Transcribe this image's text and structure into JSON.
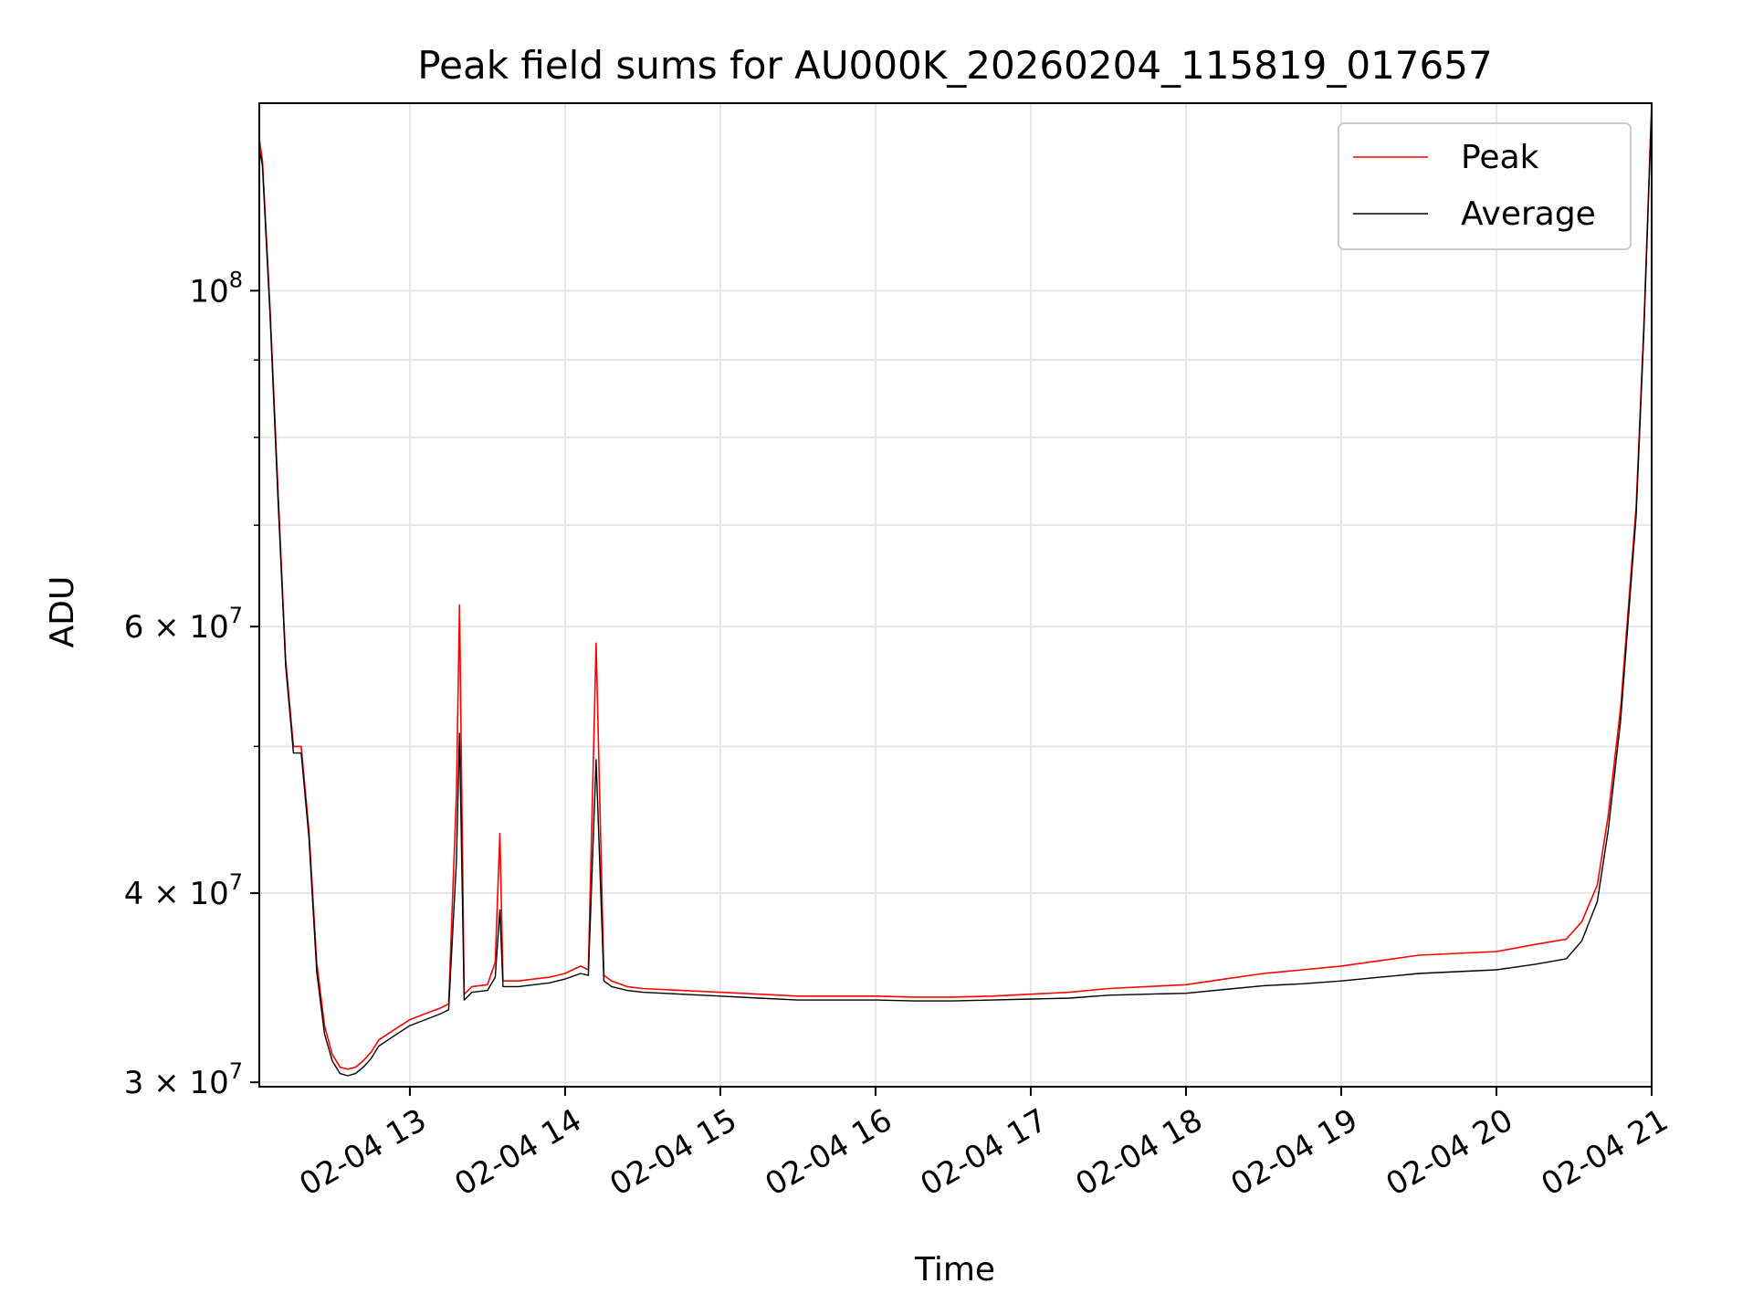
{
  "chart_data": {
    "type": "line",
    "title": "Peak field sums for AU000K_20260204_115819_017657",
    "xlabel": "Time",
    "ylabel": "ADU",
    "x_unit": "hours since 02-04 00:00",
    "xlim": [
      12.03,
      21.0
    ],
    "ylim": [
      29800000,
      133000000
    ],
    "yscale": "log",
    "grid": true,
    "legend_position": "upper right",
    "x_ticks": [
      {
        "value": 13,
        "label": "02-04 13"
      },
      {
        "value": 14,
        "label": "02-04 14"
      },
      {
        "value": 15,
        "label": "02-04 15"
      },
      {
        "value": 16,
        "label": "02-04 16"
      },
      {
        "value": 17,
        "label": "02-04 17"
      },
      {
        "value": 18,
        "label": "02-04 18"
      },
      {
        "value": 19,
        "label": "02-04 19"
      },
      {
        "value": 20,
        "label": "02-04 20"
      },
      {
        "value": 21,
        "label": "02-04 21"
      }
    ],
    "y_major_ticks": [
      {
        "value": 30000000,
        "mant": "3",
        "exp": "7"
      },
      {
        "value": 40000000,
        "mant": "4",
        "exp": "7"
      },
      {
        "value": 60000000,
        "mant": "6",
        "exp": "7"
      },
      {
        "value": 100000000,
        "mant": "",
        "exp": "8"
      }
    ],
    "y_minor_grid": [
      50000000,
      70000000,
      80000000,
      90000000
    ],
    "series": [
      {
        "name": "Peak",
        "color": "#ff0000",
        "x": [
          12.03,
          12.05,
          12.1,
          12.15,
          12.2,
          12.25,
          12.3,
          12.35,
          12.4,
          12.45,
          12.5,
          12.55,
          12.6,
          12.65,
          12.7,
          12.75,
          12.8,
          12.9,
          13.0,
          13.1,
          13.2,
          13.25,
          13.3,
          13.32,
          13.35,
          13.4,
          13.5,
          13.55,
          13.58,
          13.6,
          13.7,
          13.8,
          13.9,
          14.0,
          14.1,
          14.15,
          14.2,
          14.25,
          14.3,
          14.4,
          14.5,
          14.75,
          15.0,
          15.25,
          15.5,
          15.75,
          16.0,
          16.25,
          16.5,
          16.75,
          17.0,
          17.25,
          17.5,
          17.75,
          18.0,
          18.25,
          18.5,
          18.75,
          19.0,
          19.25,
          19.5,
          19.75,
          20.0,
          20.25,
          20.45,
          20.55,
          20.65,
          20.72,
          20.8,
          20.9,
          20.95,
          21.0
        ],
        "y": [
          126000000,
          122000000,
          97000000,
          74000000,
          57000000,
          50000000,
          50000000,
          44000000,
          36000000,
          32700000,
          31300000,
          30700000,
          30600000,
          30700000,
          31000000,
          31400000,
          32000000,
          32500000,
          33000000,
          33300000,
          33600000,
          33800000,
          46500000,
          62000000,
          34300000,
          34700000,
          34800000,
          36000000,
          43800000,
          35000000,
          35000000,
          35100000,
          35200000,
          35400000,
          35800000,
          35600000,
          58500000,
          35300000,
          35000000,
          34700000,
          34600000,
          34500000,
          34400000,
          34300000,
          34200000,
          34200000,
          34200000,
          34150000,
          34150000,
          34200000,
          34300000,
          34400000,
          34600000,
          34700000,
          34800000,
          35100000,
          35400000,
          35600000,
          35800000,
          36100000,
          36400000,
          36500000,
          36600000,
          37000000,
          37300000,
          38300000,
          40500000,
          45000000,
          53000000,
          72000000,
          95000000,
          133000000
        ]
      },
      {
        "name": "Average",
        "color": "#000000",
        "x": [
          12.03,
          12.05,
          12.1,
          12.15,
          12.2,
          12.25,
          12.3,
          12.35,
          12.4,
          12.45,
          12.5,
          12.55,
          12.6,
          12.65,
          12.7,
          12.75,
          12.8,
          12.9,
          13.0,
          13.1,
          13.2,
          13.25,
          13.3,
          13.32,
          13.35,
          13.4,
          13.5,
          13.55,
          13.58,
          13.6,
          13.7,
          13.8,
          13.9,
          14.0,
          14.1,
          14.15,
          14.2,
          14.25,
          14.3,
          14.4,
          14.5,
          14.75,
          15.0,
          15.25,
          15.5,
          15.75,
          16.0,
          16.25,
          16.5,
          16.75,
          17.0,
          17.25,
          17.5,
          17.75,
          18.0,
          18.25,
          18.5,
          18.75,
          19.0,
          19.25,
          19.5,
          19.75,
          20.0,
          20.25,
          20.45,
          20.55,
          20.65,
          20.72,
          20.8,
          20.9,
          20.95,
          21.0
        ],
        "y": [
          124000000,
          121000000,
          96000000,
          73000000,
          56500000,
          49500000,
          49500000,
          43500000,
          35500000,
          32300000,
          31000000,
          30400000,
          30300000,
          30400000,
          30700000,
          31100000,
          31700000,
          32200000,
          32700000,
          33000000,
          33300000,
          33500000,
          42000000,
          51000000,
          34000000,
          34400000,
          34500000,
          35200000,
          39000000,
          34700000,
          34700000,
          34800000,
          34900000,
          35100000,
          35400000,
          35300000,
          49000000,
          35000000,
          34700000,
          34500000,
          34400000,
          34300000,
          34200000,
          34100000,
          34000000,
          34000000,
          34000000,
          33950000,
          33950000,
          34000000,
          34050000,
          34100000,
          34250000,
          34300000,
          34350000,
          34550000,
          34750000,
          34850000,
          35000000,
          35200000,
          35400000,
          35500000,
          35600000,
          35900000,
          36200000,
          37200000,
          39500000,
          44000000,
          52000000,
          71000000,
          94000000,
          132000000
        ]
      }
    ]
  }
}
